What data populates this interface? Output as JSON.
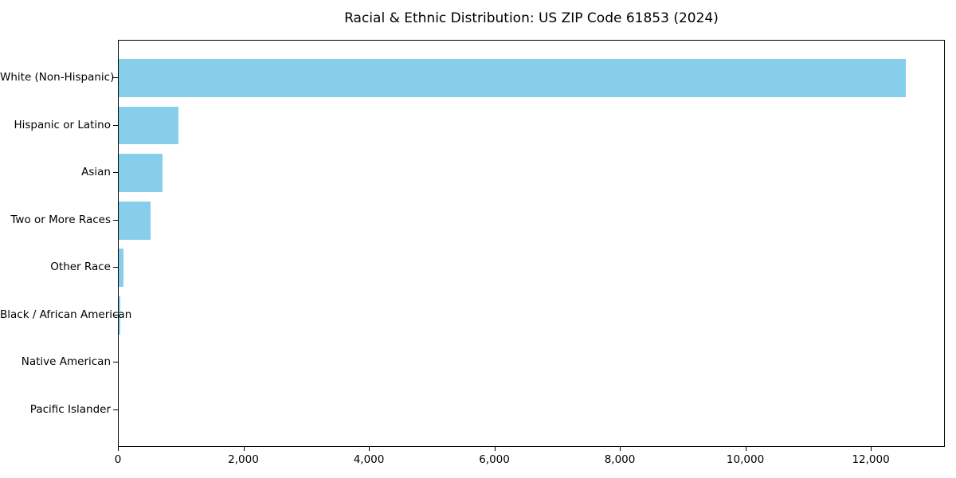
{
  "chart_data": {
    "type": "bar",
    "orientation": "horizontal",
    "title": "Racial & Ethnic Distribution: US ZIP Code 61853 (2024)",
    "categories": [
      "White (Non-Hispanic)",
      "Hispanic or Latino",
      "Asian",
      "Two or More Races",
      "Other Race",
      "Black / African American",
      "Native American",
      "Pacific Islander"
    ],
    "values": [
      12540,
      950,
      695,
      505,
      75,
      25,
      0,
      0
    ],
    "xlabel": "",
    "ylabel": "",
    "xlim": [
      0,
      13180
    ],
    "xticks": {
      "values": [
        0,
        2000,
        4000,
        6000,
        8000,
        10000,
        12000
      ],
      "labels": [
        "0",
        "2,000",
        "4,000",
        "6,000",
        "8,000",
        "10,000",
        "12,000"
      ]
    },
    "grid": false,
    "legend": null,
    "bar_color": "#87CEEB",
    "frame_color": "#000000",
    "text_color": "#000000",
    "background": "#ffffff"
  }
}
